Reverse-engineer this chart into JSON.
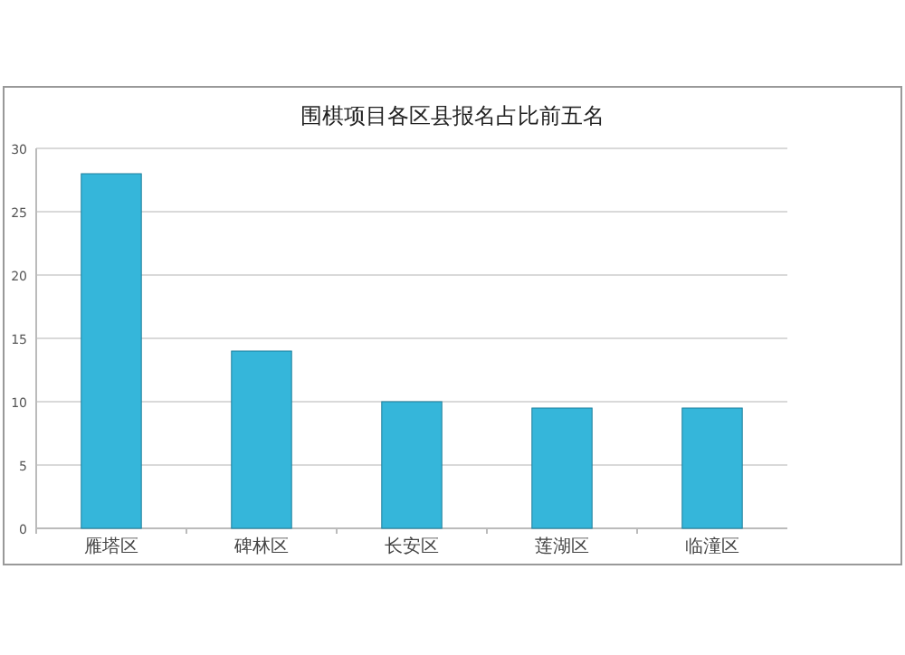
{
  "chart_data": {
    "type": "bar",
    "title": "围棋项目各区县报名占比前五名",
    "categories": [
      "雁塔区",
      "碑林区",
      "长安区",
      "莲湖区",
      "临潼区"
    ],
    "values": [
      28,
      14,
      10,
      9.5,
      9.5
    ],
    "color": "#35b6da",
    "ylim": [
      0,
      30
    ],
    "yticks": [
      0,
      5,
      10,
      15,
      20,
      25,
      30
    ],
    "grid": "y"
  }
}
